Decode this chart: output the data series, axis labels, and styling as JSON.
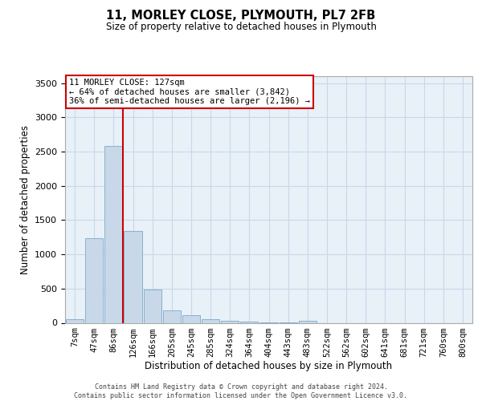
{
  "title1": "11, MORLEY CLOSE, PLYMOUTH, PL7 2FB",
  "title2": "Size of property relative to detached houses in Plymouth",
  "xlabel": "Distribution of detached houses by size in Plymouth",
  "ylabel": "Number of detached properties",
  "bin_labels": [
    "7sqm",
    "47sqm",
    "86sqm",
    "126sqm",
    "166sqm",
    "205sqm",
    "245sqm",
    "285sqm",
    "324sqm",
    "364sqm",
    "404sqm",
    "443sqm",
    "483sqm",
    "522sqm",
    "562sqm",
    "602sqm",
    "641sqm",
    "681sqm",
    "721sqm",
    "760sqm",
    "800sqm"
  ],
  "bar_values": [
    50,
    1230,
    2580,
    1340,
    490,
    185,
    110,
    55,
    30,
    15,
    10,
    5,
    30,
    0,
    0,
    0,
    0,
    0,
    0,
    0,
    0
  ],
  "bar_color": "#c8d8e8",
  "bar_edge_color": "#7aaac8",
  "property_bin_index": 3,
  "annotation_line1": "11 MORLEY CLOSE: 127sqm",
  "annotation_line2": "← 64% of detached houses are smaller (3,842)",
  "annotation_line3": "36% of semi-detached houses are larger (2,196) →",
  "red_line_color": "#cc0000",
  "annotation_box_edge_color": "#cc0000",
  "grid_color": "#c8d8e8",
  "background_color": "#e8f0f8",
  "ylim": [
    0,
    3600
  ],
  "yticks": [
    0,
    500,
    1000,
    1500,
    2000,
    2500,
    3000,
    3500
  ],
  "footer1": "Contains HM Land Registry data © Crown copyright and database right 2024.",
  "footer2": "Contains public sector information licensed under the Open Government Licence v3.0."
}
